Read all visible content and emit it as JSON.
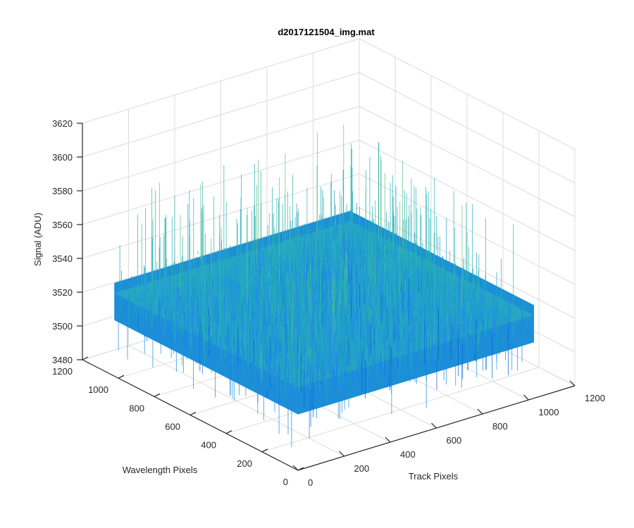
{
  "chart_data": {
    "type": "surface",
    "title": "d2017121504_img.mat",
    "xlabel": "Track Pixels",
    "ylabel": "Wavelength Pixels",
    "zlabel": "Signal (ADU)",
    "xlim": [
      0,
      1200
    ],
    "ylim": [
      0,
      1200
    ],
    "zlim": [
      3480,
      3620
    ],
    "xticks": [
      "0",
      "200",
      "400",
      "600",
      "800",
      "1000",
      "1200"
    ],
    "yticks": [
      "0",
      "200",
      "400",
      "600",
      "800",
      "1000",
      "1200"
    ],
    "zticks": [
      "3480",
      "3500",
      "3520",
      "3540",
      "3560",
      "3580",
      "3600",
      "3620"
    ],
    "grid": true,
    "data_extent": {
      "x": [
        1,
        1024
      ],
      "y": [
        1,
        1024
      ]
    },
    "signal_mean": 3525,
    "signal_range": [
      3490,
      3590
    ],
    "colormap": [
      "#0b5ed7",
      "#1e88e5",
      "#1fa2c8",
      "#2bb3b0",
      "#5fc08c",
      "#a9cf5c"
    ]
  }
}
